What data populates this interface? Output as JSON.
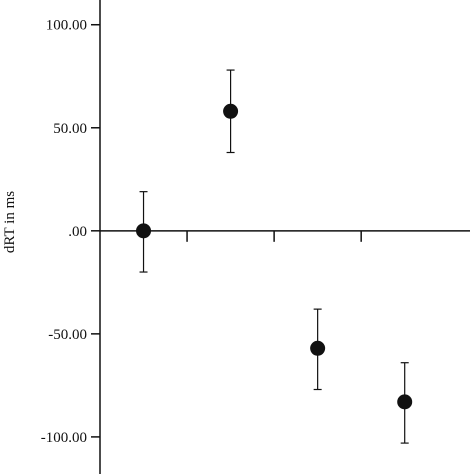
{
  "chart_data": {
    "type": "scatter",
    "title": "",
    "xlabel": "",
    "ylabel": "dRT in ms",
    "ylim": [
      -118,
      112
    ],
    "xlim": [
      0.5,
      4.75
    ],
    "yticks": [
      100,
      50,
      0,
      -50,
      -100
    ],
    "ytick_labels": [
      "100.00",
      "50.00",
      ".00",
      "-50.00",
      "-100.00"
    ],
    "x_ticks": [
      1.5,
      2.5,
      3.5
    ],
    "grid": false,
    "legend": "none",
    "marker_color": "#111111",
    "points": [
      {
        "x": 1,
        "y": 0,
        "err_low": -20,
        "err_high": 19
      },
      {
        "x": 2,
        "y": 58,
        "err_low": 38,
        "err_high": 78
      },
      {
        "x": 3,
        "y": -57,
        "err_low": -77,
        "err_high": -38
      },
      {
        "x": 4,
        "y": -83,
        "err_low": -103,
        "err_high": -64
      }
    ]
  }
}
